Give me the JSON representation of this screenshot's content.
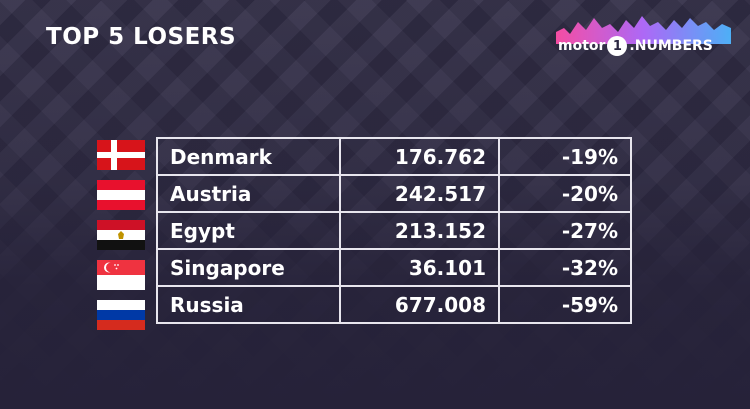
{
  "title": "TOP 5 LOSERS",
  "logo": {
    "word_left": "motor",
    "digit": "1",
    "word_right": "NUMBERS",
    "colors": [
      "#ff4fa8",
      "#b36bff",
      "#4fb6ff",
      "#ffffff"
    ]
  },
  "rows": [
    {
      "country": "Denmark",
      "units": "176.762",
      "change": "-19%",
      "flag_icon": "denmark-flag-icon"
    },
    {
      "country": "Austria",
      "units": "242.517",
      "change": "-20%",
      "flag_icon": "austria-flag-icon"
    },
    {
      "country": "Egypt",
      "units": "213.152",
      "change": "-27%",
      "flag_icon": "egypt-flag-icon"
    },
    {
      "country": "Singapore",
      "units": "36.101",
      "change": "-32%",
      "flag_icon": "singapore-flag-icon"
    },
    {
      "country": "Russia",
      "units": "677.008",
      "change": "-59%",
      "flag_icon": "russia-flag-icon"
    }
  ]
}
